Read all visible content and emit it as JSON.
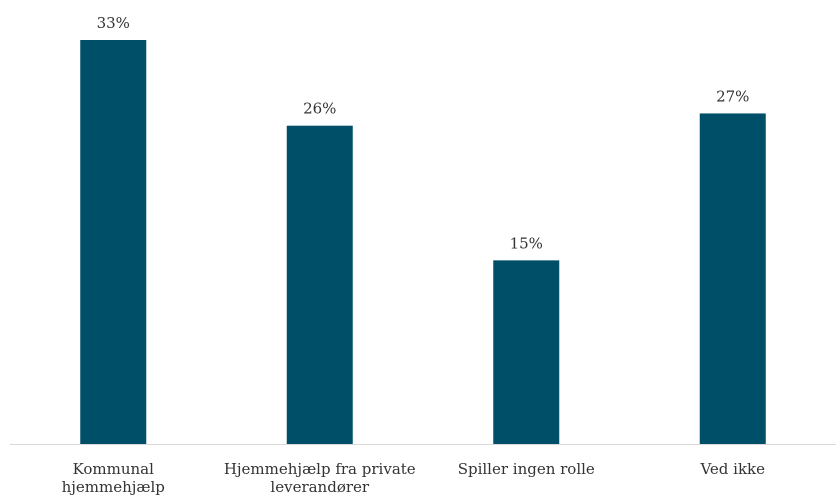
{
  "chart_data": {
    "type": "bar",
    "categories": [
      [
        "Kommunal",
        "hjemmehjælp"
      ],
      [
        "Hjemmehjælp fra private",
        "leverandører"
      ],
      [
        "Spiller ingen rolle"
      ],
      [
        "Ved ikke"
      ]
    ],
    "values": [
      33,
      26,
      15,
      27
    ],
    "value_labels": [
      "33%",
      "26%",
      "15%",
      "27%"
    ],
    "unit": "%",
    "title": "",
    "xlabel": "",
    "ylabel": "",
    "ylim": [
      0,
      33
    ],
    "grid": false,
    "legend": "none",
    "bar_color": "#004f69",
    "axis_color": "#d9d9d9",
    "text_color": "#333333"
  }
}
